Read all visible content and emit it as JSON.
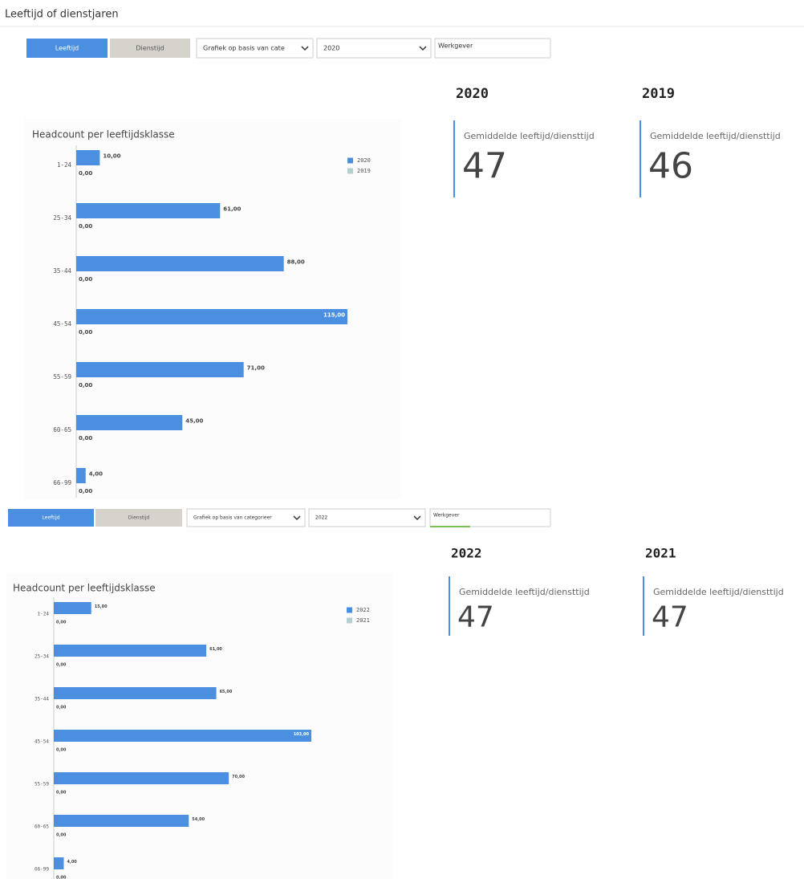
{
  "header": {
    "title": "Leeftijd of dienstjaren"
  },
  "toolbars": [
    {
      "buttons": [
        "Leeftijd",
        "Dienstijd"
      ],
      "selects": [
        "Grafiek op basis van cate",
        "2020"
      ],
      "input": "Werkgever"
    },
    {
      "buttons": [
        "Leeftijd",
        "Dienstijd"
      ],
      "selects": [
        "Grafiek op basis van categorieer",
        "2022"
      ],
      "input": "Werkgever"
    }
  ],
  "kpis": [
    [
      {
        "year": "2020",
        "label": "Gemiddelde leeftijd/diensttijd",
        "value": 47
      },
      {
        "year": "2019",
        "label": "Gemiddelde leeftijd/diensttijd",
        "value": 46
      }
    ],
    [
      {
        "year": "2022",
        "label": "Gemiddelde leeftijd/diensttijd",
        "value": 47
      },
      {
        "year": "2021",
        "label": "Gemiddelde leeftijd/diensttijd",
        "value": 47
      }
    ]
  ],
  "chart_data": [
    {
      "type": "bar",
      "orientation": "horizontal",
      "title": "Headcount per leeftijdsklasse",
      "categories": [
        "1-24",
        "25-34",
        "35-44",
        "45-54",
        "55-59",
        "60-65",
        "66-99"
      ],
      "series": [
        {
          "name": "2020",
          "color": "#4a8fe0",
          "values": [
            10,
            61,
            88,
            115,
            71,
            45,
            4
          ],
          "value_labels": [
            "10,00",
            "61,00",
            "88,00",
            "115,00",
            "71,00",
            "45,00",
            "4,00"
          ]
        },
        {
          "name": "2019",
          "color": "#b4cfcf",
          "values": [
            0,
            0,
            0,
            0,
            0,
            0,
            0
          ],
          "value_labels": [
            "0,00",
            "0,00",
            "0,00",
            "0,00",
            "0,00",
            "0,00",
            "0,00"
          ]
        }
      ],
      "legend": "top-right"
    },
    {
      "type": "bar",
      "orientation": "horizontal",
      "title": "Headcount per leeftijdsklasse",
      "categories": [
        "1-24",
        "25-34",
        "35-44",
        "45-54",
        "55-59",
        "60-65",
        "66-99"
      ],
      "series": [
        {
          "name": "2022",
          "color": "#4a8fe0",
          "values": [
            15,
            61,
            65,
            103,
            70,
            54,
            4
          ],
          "value_labels": [
            "15,00",
            "61,00",
            "65,00",
            "103,00",
            "70,00",
            "54,00",
            "4,00"
          ]
        },
        {
          "name": "2021",
          "color": "#b4cfcf",
          "values": [
            0,
            0,
            0,
            0,
            0,
            0,
            0
          ],
          "value_labels": [
            "0,00",
            "0,00",
            "0,00",
            "0,00",
            "0,00",
            "0,00",
            "0,00"
          ]
        }
      ],
      "legend": "top-right"
    }
  ]
}
